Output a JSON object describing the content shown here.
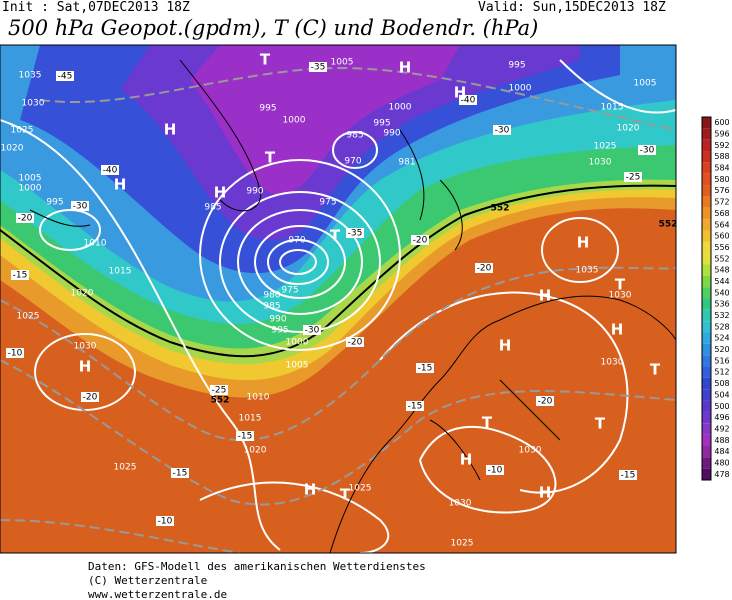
{
  "header": {
    "init": "Init : Sat,07DEC2013 18Z",
    "valid": "Valid: Sun,15DEC2013 18Z",
    "title": "500 hPa Geopot.(gpdm), T (C) und Bodendr. (hPa)"
  },
  "map": {
    "labels": [
      "H",
      "H",
      "H",
      "H",
      "T",
      "T",
      "H",
      "T",
      "H",
      "H",
      "H",
      "H",
      "H",
      "T",
      "T",
      "T",
      "H",
      "H",
      "H",
      "T",
      "T",
      "1035",
      "1030",
      "1025",
      "1020",
      "1005",
      "1000",
      "995",
      "1010",
      "1015",
      "1020",
      "1025",
      "1030",
      "1025",
      "1020",
      "1015",
      "1010",
      "1005",
      "1000",
      "995",
      "990",
      "985",
      "980",
      "975",
      "970",
      "975",
      "985",
      "990",
      "995",
      "1000",
      "1005",
      "1000",
      "995",
      "990",
      "1000",
      "995",
      "1005",
      "1015",
      "1020",
      "1025",
      "1030",
      "1035",
      "1030",
      "1030",
      "1030",
      "1030",
      "1025",
      "1025",
      "985",
      "970",
      "981",
      "-45",
      "-40",
      "-35",
      "-40",
      "-30",
      "-30",
      "-20",
      "-15",
      "-10",
      "-20",
      "-15",
      "-10",
      "-25",
      "-20",
      "-15",
      "-10",
      "-20",
      "-15",
      "-25",
      "-30",
      "-35",
      "-30",
      "-20",
      "-15",
      "-20",
      "-15",
      "552",
      "552",
      "552"
    ]
  },
  "scale": {
    "labels": [
      "600",
      "596",
      "592",
      "588",
      "584",
      "580",
      "576",
      "572",
      "568",
      "564",
      "560",
      "556",
      "552",
      "548",
      "544",
      "540",
      "536",
      "532",
      "528",
      "524",
      "520",
      "516",
      "512",
      "508",
      "504",
      "500",
      "496",
      "492",
      "488",
      "484",
      "480",
      "478"
    ]
  },
  "footer": {
    "source": "Daten: GFS-Modell des amerikanischen Wetterdienstes",
    "copyright": "(C) Wetterzentrale",
    "website": "www.wetterzentrale.de"
  }
}
